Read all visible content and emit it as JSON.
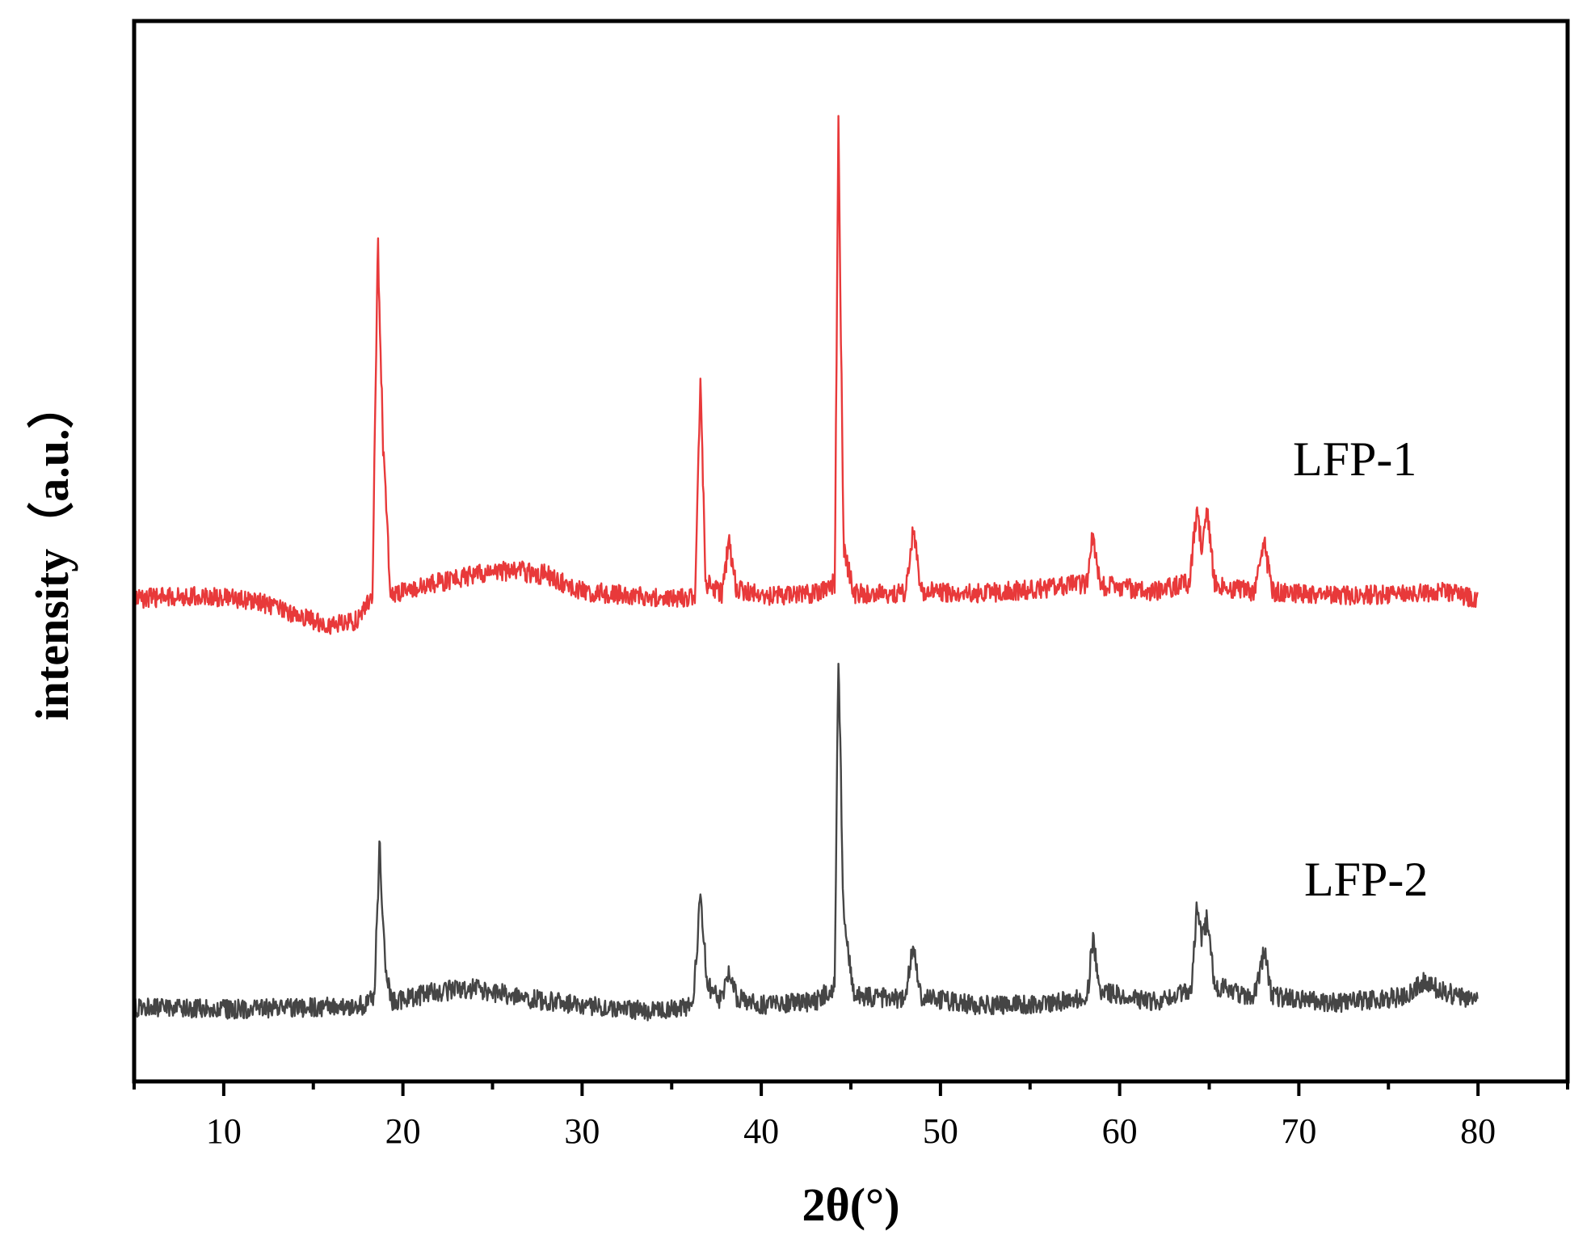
{
  "chart_data": {
    "type": "line",
    "title": "",
    "xlabel": "2θ(°)",
    "ylabel": "intensity（a.u.）",
    "xlim": [
      5,
      85
    ],
    "ylim": [
      0,
      1
    ],
    "x_ticks": [
      10,
      20,
      30,
      40,
      50,
      60,
      70,
      80
    ],
    "x_minor_ticks": [
      5,
      15,
      25,
      35,
      45,
      55,
      65,
      75,
      85
    ],
    "y_ticks_shown": false,
    "grid": false,
    "legend": "none",
    "series": [
      {
        "name": "LFP-1",
        "color": "#e8393a",
        "baseline": 0.455,
        "points": [
          [
            5,
            0.455
          ],
          [
            8,
            0.458
          ],
          [
            10,
            0.456
          ],
          [
            12,
            0.452
          ],
          [
            14,
            0.44
          ],
          [
            16,
            0.43
          ],
          [
            17.5,
            0.435
          ],
          [
            18.3,
            0.46
          ],
          [
            18.6,
            0.79
          ],
          [
            18.9,
            0.6
          ],
          [
            19.3,
            0.46
          ],
          [
            20,
            0.462
          ],
          [
            22,
            0.47
          ],
          [
            24,
            0.478
          ],
          [
            26,
            0.482
          ],
          [
            28,
            0.478
          ],
          [
            30,
            0.462
          ],
          [
            33,
            0.458
          ],
          [
            35,
            0.455
          ],
          [
            36.3,
            0.458
          ],
          [
            36.6,
            0.655
          ],
          [
            36.9,
            0.47
          ],
          [
            37.8,
            0.46
          ],
          [
            38.2,
            0.51
          ],
          [
            38.6,
            0.465
          ],
          [
            40,
            0.458
          ],
          [
            43,
            0.46
          ],
          [
            44.1,
            0.47
          ],
          [
            44.3,
            0.9
          ],
          [
            44.6,
            0.5
          ],
          [
            45.2,
            0.46
          ],
          [
            48,
            0.46
          ],
          [
            48.5,
            0.52
          ],
          [
            48.9,
            0.462
          ],
          [
            52,
            0.46
          ],
          [
            56,
            0.465
          ],
          [
            58.2,
            0.47
          ],
          [
            58.5,
            0.52
          ],
          [
            58.9,
            0.468
          ],
          [
            62,
            0.462
          ],
          [
            63.9,
            0.47
          ],
          [
            64.3,
            0.54
          ],
          [
            64.6,
            0.5
          ],
          [
            64.9,
            0.54
          ],
          [
            65.3,
            0.468
          ],
          [
            67.5,
            0.462
          ],
          [
            68.1,
            0.505
          ],
          [
            68.5,
            0.462
          ],
          [
            72,
            0.458
          ],
          [
            76,
            0.46
          ],
          [
            78,
            0.462
          ],
          [
            80,
            0.455
          ]
        ]
      },
      {
        "name": "LFP-2",
        "color": "#454545",
        "baseline": 0.07,
        "points": [
          [
            5,
            0.07
          ],
          [
            10,
            0.068
          ],
          [
            15,
            0.07
          ],
          [
            18,
            0.072
          ],
          [
            18.4,
            0.08
          ],
          [
            18.7,
            0.225
          ],
          [
            19,
            0.11
          ],
          [
            19.4,
            0.075
          ],
          [
            22,
            0.085
          ],
          [
            24,
            0.088
          ],
          [
            27,
            0.078
          ],
          [
            30,
            0.072
          ],
          [
            34,
            0.066
          ],
          [
            36.2,
            0.072
          ],
          [
            36.6,
            0.175
          ],
          [
            37,
            0.09
          ],
          [
            37.8,
            0.075
          ],
          [
            38.2,
            0.108
          ],
          [
            38.6,
            0.08
          ],
          [
            40,
            0.072
          ],
          [
            43,
            0.075
          ],
          [
            44.1,
            0.09
          ],
          [
            44.3,
            0.415
          ],
          [
            44.6,
            0.15
          ],
          [
            45.2,
            0.08
          ],
          [
            48,
            0.078
          ],
          [
            48.5,
            0.13
          ],
          [
            48.9,
            0.08
          ],
          [
            52,
            0.072
          ],
          [
            56,
            0.073
          ],
          [
            58.2,
            0.08
          ],
          [
            58.5,
            0.135
          ],
          [
            58.9,
            0.085
          ],
          [
            62,
            0.075
          ],
          [
            64,
            0.085
          ],
          [
            64.3,
            0.165
          ],
          [
            64.6,
            0.135
          ],
          [
            64.9,
            0.155
          ],
          [
            65.3,
            0.09
          ],
          [
            67.5,
            0.08
          ],
          [
            68.1,
            0.125
          ],
          [
            68.5,
            0.08
          ],
          [
            72,
            0.074
          ],
          [
            76,
            0.08
          ],
          [
            77,
            0.095
          ],
          [
            78,
            0.085
          ],
          [
            80,
            0.075
          ]
        ]
      }
    ]
  }
}
